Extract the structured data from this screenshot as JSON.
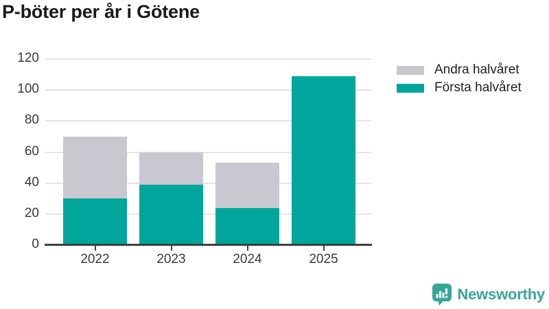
{
  "title": "P-böter per år i Götene",
  "chart_data": {
    "type": "bar",
    "stacked": true,
    "categories": [
      "2022",
      "2023",
      "2024",
      "2025"
    ],
    "series": [
      {
        "name": "Första halvåret",
        "color": "#00a69b",
        "values": [
          30,
          39,
          24,
          109
        ]
      },
      {
        "name": "Andra halvåret",
        "color": "#c9c7cf",
        "values": [
          40,
          21,
          29,
          0
        ]
      }
    ],
    "title": "P-böter per år i Götene",
    "xlabel": "",
    "ylabel": "",
    "ylim": [
      0,
      120
    ],
    "yticks": [
      0,
      20,
      40,
      60,
      80,
      100,
      120
    ],
    "grid": true,
    "legend_position": "top-right",
    "legend_order": [
      "Andra halvåret",
      "Första halvåret"
    ]
  },
  "legend": {
    "items": [
      {
        "label": "Andra halvåret",
        "color": "#c9c7cf"
      },
      {
        "label": "Första halvåret",
        "color": "#00a69b"
      }
    ]
  },
  "footer": {
    "brand": "Newsworthy"
  },
  "colors": {
    "first_half": "#00a69b",
    "second_half": "#c9c7cf",
    "grid": "#e4e4e7",
    "axis": "#3f3f3f",
    "tick_text": "#3a3a3a",
    "title": "#1a1a1a",
    "brand": "#3aa596"
  }
}
